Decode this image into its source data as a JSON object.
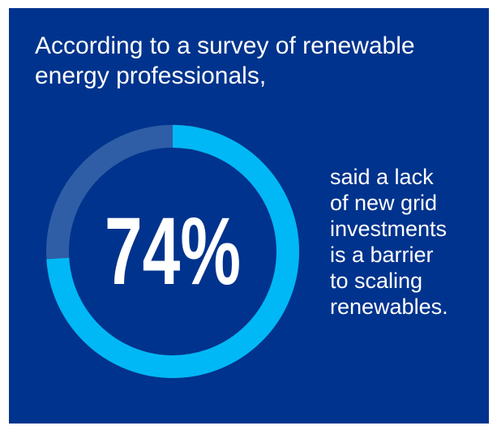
{
  "intro": {
    "line1": "According to a survey of renewable",
    "line2": "energy professionals,"
  },
  "chart_data": {
    "type": "pie",
    "values": [
      74,
      26
    ],
    "value_label": "74%",
    "colors": {
      "filled": "#00b8f5",
      "remainder": "#2f5ea6",
      "background": "#00338d"
    }
  },
  "caption": {
    "lines": [
      "said a lack",
      "of new grid",
      "investments",
      "is a barrier",
      "to scaling",
      "renewables."
    ]
  }
}
